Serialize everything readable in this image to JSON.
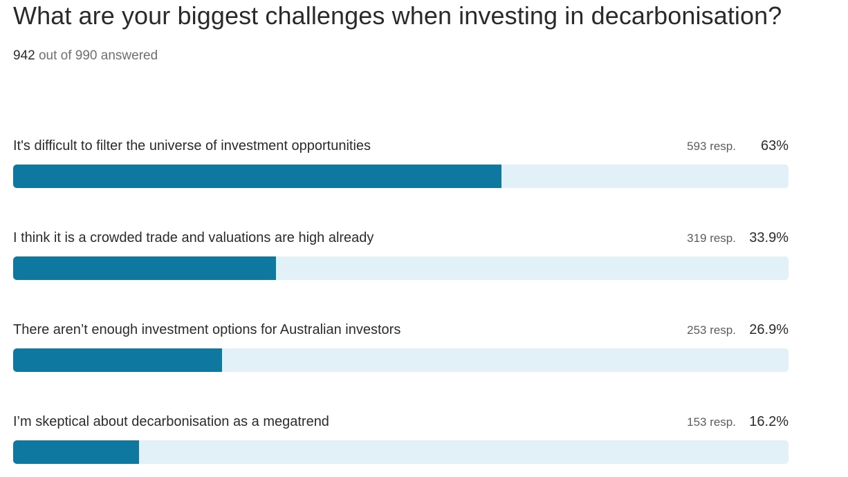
{
  "header": {
    "title": "What are your biggest challenges when investing in decarbonisation?",
    "answered_count": "942",
    "answered_rest": " out of 990 answered"
  },
  "colors": {
    "bar_fill": "#0e78a0",
    "bar_track": "#e2f0f7"
  },
  "chart_data": {
    "type": "bar",
    "orientation": "horizontal",
    "categories": [
      "It's difficult to filter the universe of investment opportunities",
      "I think it is a crowded trade and valuations are high already",
      "There aren’t enough investment options for Australian investors",
      "I’m skeptical about decarbonisation as a megatrend"
    ],
    "responses": [
      "593 resp.",
      "319 resp.",
      "253 resp.",
      "153 resp."
    ],
    "percent_labels": [
      "63%",
      "33.9%",
      "26.9%",
      "16.2%"
    ],
    "values": [
      63,
      33.9,
      26.9,
      16.2
    ],
    "xlim": [
      0,
      100
    ],
    "grid": false
  }
}
